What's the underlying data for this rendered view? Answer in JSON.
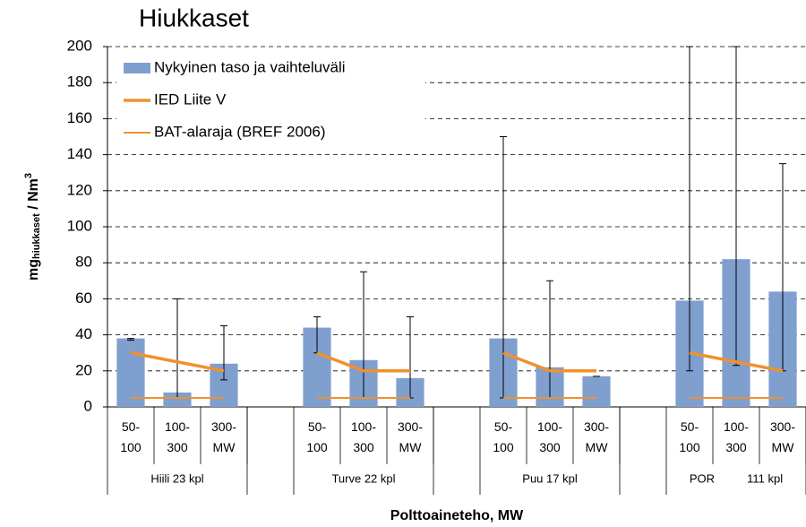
{
  "chart_data": {
    "type": "bar",
    "title": "Hiukkaset",
    "y_label": {
      "main": "mg",
      "sub": "hiukkaset",
      "rest": " / Nm",
      "sup": "3"
    },
    "x_label": "Polttoaineteho, MW",
    "categories": [
      [
        "50-",
        "100"
      ],
      [
        "100-",
        "300"
      ],
      [
        "300-",
        "MW"
      ],
      null,
      [
        "50-",
        "100"
      ],
      [
        "100-",
        "300"
      ],
      [
        "300-",
        "MW"
      ],
      null,
      [
        "50-",
        "100"
      ],
      [
        "100-",
        "300"
      ],
      [
        "300-",
        "MW"
      ],
      null,
      [
        "50-",
        "100"
      ],
      [
        "100-",
        "300"
      ],
      [
        "300-",
        "MW"
      ]
    ],
    "groups": [
      "Hiili 23 kpl",
      "Turve 22 kpl",
      "Puu 17 kpl",
      "POR          111 kpl"
    ],
    "series": [
      {
        "name": "Nykyinen taso ja vaihteluväli",
        "type": "bar",
        "color": "#7f9fcf",
        "values": [
          38,
          8,
          24,
          null,
          44,
          26,
          16,
          null,
          38,
          22,
          17,
          null,
          59,
          82,
          64
        ],
        "error_low": [
          37,
          5,
          15,
          null,
          30,
          5,
          5,
          null,
          5,
          5,
          17,
          null,
          20,
          23,
          20
        ],
        "error_high": [
          38,
          60,
          45,
          null,
          50,
          75,
          50,
          null,
          150,
          70,
          17,
          null,
          200,
          200,
          135
        ]
      },
      {
        "name": "IED Liite V",
        "type": "line",
        "color": "#f0912e",
        "width": 3.5,
        "values": [
          30,
          25,
          20,
          null,
          30,
          20,
          20,
          null,
          30,
          20,
          20,
          null,
          30,
          25,
          20
        ]
      },
      {
        "name": "BAT-alaraja (BREF 2006)",
        "type": "line",
        "color": "#f0912e",
        "width": 2,
        "values": [
          5,
          5,
          5,
          null,
          5,
          5,
          5,
          null,
          5,
          5,
          5,
          null,
          5,
          5,
          5
        ]
      }
    ],
    "ylim": [
      0,
      200
    ],
    "yticks": [
      0,
      20,
      40,
      60,
      80,
      100,
      120,
      140,
      160,
      180,
      200
    ],
    "grid": true,
    "legend": "top-left"
  }
}
